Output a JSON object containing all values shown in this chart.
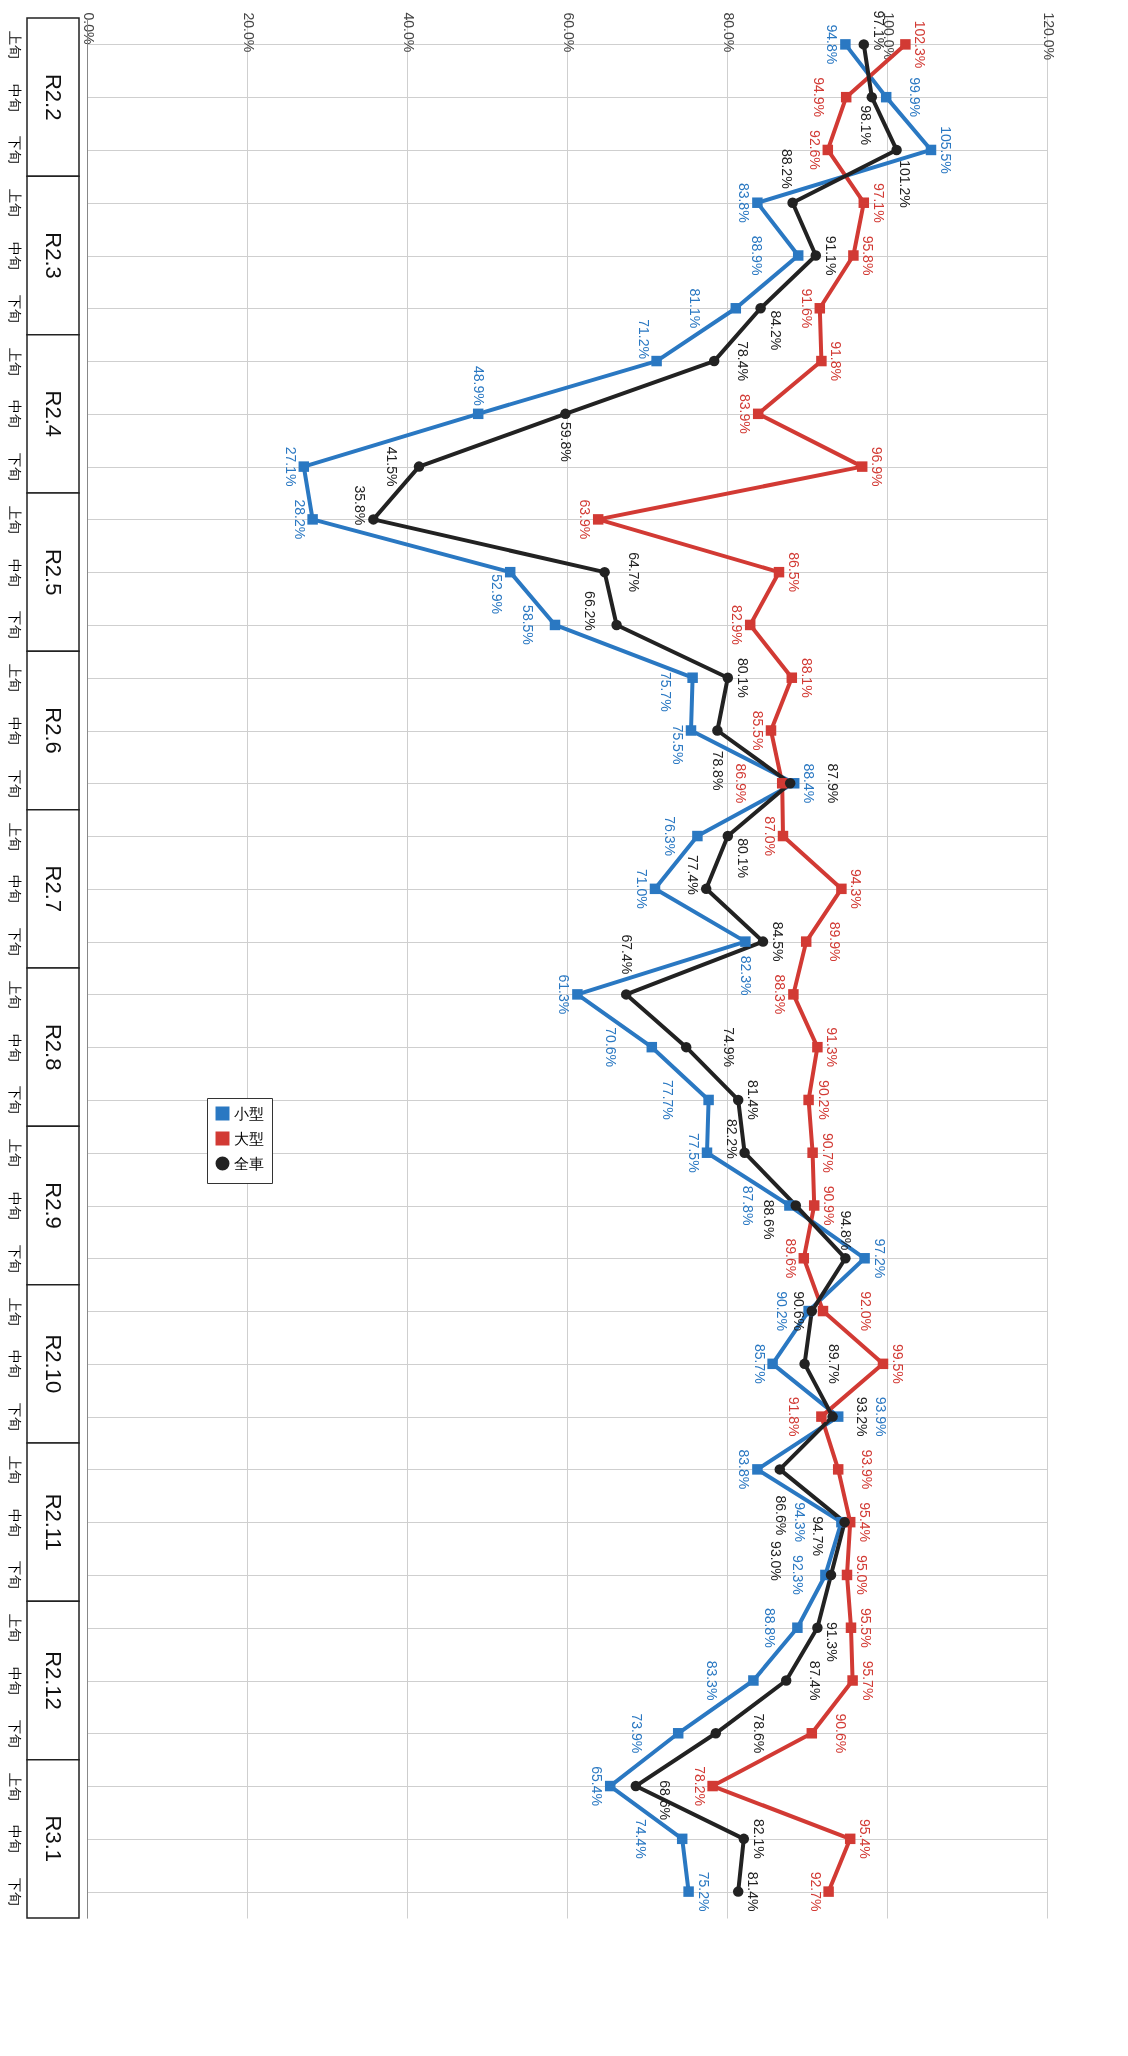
{
  "chart_data": {
    "type": "line",
    "orientation": "horizontal",
    "categories": [
      "上旬",
      "中旬",
      "下旬",
      "上旬",
      "中旬",
      "下旬",
      "上旬",
      "中旬",
      "下旬",
      "上旬",
      "中旬",
      "下旬",
      "上旬",
      "中旬",
      "下旬",
      "上旬",
      "中旬",
      "下旬",
      "上旬",
      "中旬",
      "下旬",
      "上旬",
      "中旬",
      "下旬",
      "上旬",
      "中旬",
      "下旬",
      "上旬",
      "中旬",
      "下旬",
      "上旬",
      "中旬",
      "下旬",
      "上旬",
      "中旬",
      "下旬"
    ],
    "series": [
      {
        "name": "小型",
        "color": "#2a78c2",
        "marker": "square",
        "values": [
          94.8,
          99.9,
          105.5,
          83.8,
          88.9,
          81.1,
          71.2,
          48.9,
          27.1,
          28.2,
          52.9,
          58.5,
          75.7,
          75.5,
          88.4,
          76.3,
          71.0,
          82.3,
          61.3,
          70.6,
          77.7,
          77.5,
          87.8,
          97.2,
          90.2,
          85.7,
          93.9,
          83.8,
          94.3,
          92.3,
          88.8,
          83.3,
          73.9,
          65.4,
          74.4,
          75.2
        ],
        "value_labels": [
          "94.8%",
          "99.9%",
          "105.5%",
          "83.8%",
          "88.9%",
          "81.1%",
          "71.2%",
          "48.9%",
          "27.1%",
          "28.2%",
          "52.9%",
          "58.5%",
          "75.7%",
          "75.5%",
          "88.4%",
          "76.3%",
          "71.0%",
          "82.3%",
          "61.3%",
          "70.6%",
          "77.7%",
          "77.5%",
          "87.8%",
          "97.2%",
          "90.2%",
          "85.7%",
          "93.9%",
          "83.8%",
          "94.3%",
          "92.3%",
          "88.8%",
          "83.3%",
          "73.9%",
          "65.4%",
          "74.4%",
          "75.2%"
        ]
      },
      {
        "name": "大型",
        "color": "#d23a34",
        "marker": "square",
        "values": [
          102.3,
          94.9,
          92.6,
          97.1,
          95.8,
          91.6,
          91.8,
          83.9,
          96.9,
          63.9,
          86.5,
          82.9,
          88.1,
          85.5,
          86.9,
          87.0,
          94.3,
          89.9,
          88.3,
          91.3,
          90.2,
          90.7,
          90.9,
          89.6,
          92.0,
          99.5,
          91.8,
          93.9,
          95.4,
          95.0,
          95.5,
          95.7,
          90.6,
          78.2,
          95.4,
          92.7
        ],
        "value_labels": [
          "102.3%",
          "94.9%",
          "92.6%",
          "97.1%",
          "95.8%",
          "91.6%",
          "91.8%",
          "83.9%",
          "96.9%",
          "63.9%",
          "86.5%",
          "82.9%",
          "88.1%",
          "85.5%",
          "86.9%",
          "87.0%",
          "94.3%",
          "89.9%",
          "88.3%",
          "91.3%",
          "90.2%",
          "90.7%",
          "90.9%",
          "89.6%",
          "92.0%",
          "99.5%",
          "91.8%",
          "93.9%",
          "95.4%",
          "95.0%",
          "95.5%",
          "95.7%",
          "90.6%",
          "78.2%",
          "95.4%",
          "92.7%"
        ]
      },
      {
        "name": "全車",
        "color": "#222222",
        "marker": "circle",
        "values": [
          97.1,
          98.1,
          101.2,
          88.2,
          91.1,
          84.2,
          78.4,
          59.8,
          41.5,
          35.8,
          64.7,
          66.2,
          80.1,
          78.8,
          87.9,
          80.1,
          77.4,
          84.5,
          67.4,
          74.9,
          81.4,
          82.2,
          88.6,
          94.8,
          90.6,
          89.7,
          93.2,
          86.6,
          94.7,
          93.0,
          91.3,
          87.4,
          78.6,
          68.6,
          82.1,
          81.4
        ],
        "value_labels": [
          "97.1%",
          "98.1%",
          "101.2%",
          "88.2%",
          "91.1%",
          "84.2%",
          "78.4%",
          "59.8%",
          "41.5%",
          "35.8%",
          "64.7%",
          "66.2%",
          "80.1%",
          "78.8%",
          "87.9%",
          "80.1%",
          "77.4%",
          "84.5%",
          "67.4%",
          "74.9%",
          "81.4%",
          "82.2%",
          "88.6%",
          "94.8%",
          "90.6%",
          "89.7%",
          "93.2%",
          "86.6%",
          "94.7%",
          "93.0%",
          "91.3%",
          "87.4%",
          "78.6%",
          "68.6%",
          "82.1%",
          "81.4%"
        ]
      }
    ],
    "xlim": [
      0,
      120
    ],
    "xticks": [
      {
        "value": 0,
        "label": "0.0%"
      },
      {
        "value": 20,
        "label": "20.0%"
      },
      {
        "value": 40,
        "label": "40.0%"
      },
      {
        "value": 60,
        "label": "60.0%"
      },
      {
        "value": 80,
        "label": "80.0%"
      },
      {
        "value": 100,
        "label": "100.0%"
      },
      {
        "value": 120,
        "label": "120.0%"
      }
    ],
    "grid": true,
    "legend": "left",
    "line_style": "solid",
    "annotations": [
      "R2.2",
      "R2.3",
      "R2.4",
      "R2.5",
      "R2.6",
      "R2.7",
      "R2.8",
      "R2.9",
      "R2.10",
      "R2.11",
      "R2.12",
      "R3.1"
    ]
  }
}
